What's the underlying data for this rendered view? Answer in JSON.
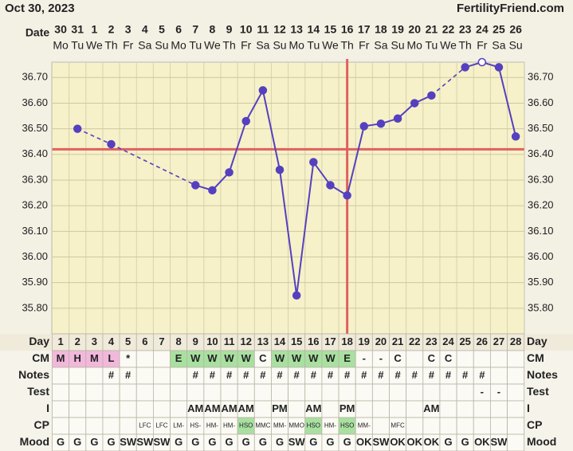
{
  "header": {
    "date": "Oct 30, 2023",
    "site": "FertilityFriend.com"
  },
  "chart_data": {
    "type": "line",
    "date_label": "Date",
    "dates": [
      "30",
      "31",
      "1",
      "2",
      "3",
      "4",
      "5",
      "6",
      "7",
      "8",
      "9",
      "10",
      "11",
      "12",
      "13",
      "14",
      "15",
      "16",
      "17",
      "18",
      "19",
      "20",
      "21",
      "22",
      "23",
      "24",
      "25",
      "26"
    ],
    "weekdays": [
      "Mo",
      "Tu",
      "We",
      "Th",
      "Fr",
      "Sa",
      "Su",
      "Mo",
      "Tu",
      "We",
      "Th",
      "Fr",
      "Sa",
      "Su",
      "Mo",
      "Tu",
      "We",
      "Th",
      "Fr",
      "Sa",
      "Su",
      "Mo",
      "Tu",
      "We",
      "Th",
      "Fr",
      "Sa",
      "Su"
    ],
    "values": [
      null,
      36.5,
      null,
      36.44,
      null,
      null,
      null,
      null,
      36.28,
      36.26,
      36.33,
      36.53,
      36.65,
      36.34,
      35.85,
      36.37,
      36.28,
      36.24,
      36.51,
      36.52,
      36.54,
      36.6,
      36.63,
      null,
      36.74,
      36.76,
      36.74,
      36.47
    ],
    "color": "#5540c0",
    "open_marker_days": [
      26
    ],
    "ylim": [
      35.7,
      36.76
    ],
    "yticks": [
      {
        "value": 35.8,
        "label": "35.80"
      },
      {
        "value": 35.9,
        "label": "35.90"
      },
      {
        "value": 36.0,
        "label": "36.00"
      },
      {
        "value": 36.1,
        "label": "36.10"
      },
      {
        "value": 36.2,
        "label": "36.20"
      },
      {
        "value": 36.3,
        "label": "36.30"
      },
      {
        "value": 36.4,
        "label": "36.40"
      },
      {
        "value": 36.5,
        "label": "36.50"
      },
      {
        "value": 36.6,
        "label": "36.60"
      },
      {
        "value": 36.7,
        "label": "36.70"
      }
    ],
    "grid": true,
    "coverline": 36.42,
    "ovulation_day": 18,
    "marker_line_color": "#e06060"
  },
  "table": {
    "rows": [
      {
        "label": "Day",
        "cells": [
          "1",
          "2",
          "3",
          "4",
          "5",
          "6",
          "7",
          "8",
          "9",
          "10",
          "11",
          "12",
          "13",
          "14",
          "15",
          "16",
          "17",
          "18",
          "19",
          "20",
          "21",
          "22",
          "23",
          "24",
          "25",
          "26",
          "27",
          "28"
        ]
      },
      {
        "label": "CM",
        "cells": [
          "M",
          "H",
          "M",
          "L",
          "*",
          null,
          null,
          "E",
          "W",
          "W",
          "W",
          "W",
          "C",
          "W",
          "W",
          "W",
          "W",
          "E",
          "-",
          "-",
          "C",
          null,
          "C",
          "C",
          null,
          null,
          null,
          null
        ]
      },
      {
        "label": "Notes",
        "cells": [
          null,
          null,
          null,
          "#",
          "#",
          null,
          null,
          null,
          "#",
          "#",
          "#",
          "#",
          "#",
          "#",
          "#",
          "#",
          "#",
          "#",
          "#",
          "#",
          "#",
          "#",
          "#",
          "#",
          "#",
          "#",
          null,
          null
        ]
      },
      {
        "label": "Test",
        "cells": [
          null,
          null,
          null,
          null,
          null,
          null,
          null,
          null,
          null,
          null,
          null,
          null,
          null,
          null,
          null,
          null,
          null,
          null,
          null,
          null,
          null,
          null,
          null,
          null,
          null,
          "-",
          "-",
          null
        ]
      },
      {
        "label": "I",
        "cells": [
          null,
          null,
          null,
          null,
          null,
          null,
          null,
          null,
          "AM",
          "AM",
          "AM",
          "AM",
          null,
          "PM",
          null,
          "AM",
          null,
          "PM",
          null,
          null,
          null,
          null,
          "AM",
          null,
          null,
          null,
          null,
          null
        ]
      },
      {
        "label": "CP",
        "cells": [
          null,
          null,
          null,
          null,
          null,
          "LFC",
          "LFC",
          "LM-",
          "HS-",
          "HM-",
          "HM-",
          "HSO",
          "MMC",
          "MM-",
          "MMO",
          "HSO",
          "HM-",
          "HSO",
          "MM-",
          null,
          "MFC",
          null,
          null,
          null,
          null,
          null,
          null,
          null
        ]
      },
      {
        "label": "Mood",
        "cells": [
          "G",
          "G",
          "G",
          "G",
          "SW",
          "SW",
          "SW",
          "G",
          "G",
          "G",
          "G",
          "G",
          "G",
          "G",
          "SW",
          "G",
          "G",
          "G",
          "OK",
          "SW",
          "OK",
          "OK",
          "OK",
          "G",
          "G",
          "OK",
          "SW",
          null
        ]
      }
    ],
    "cell_colors": {
      "CM": {
        "M": "#f2b8dc",
        "H": "#f2b8dc",
        "L": "#f2b8dc",
        "E": "#a8e0a0",
        "W": "#a8e0a0"
      },
      "CP": {
        "HSO": "#a8e0a0"
      }
    }
  }
}
